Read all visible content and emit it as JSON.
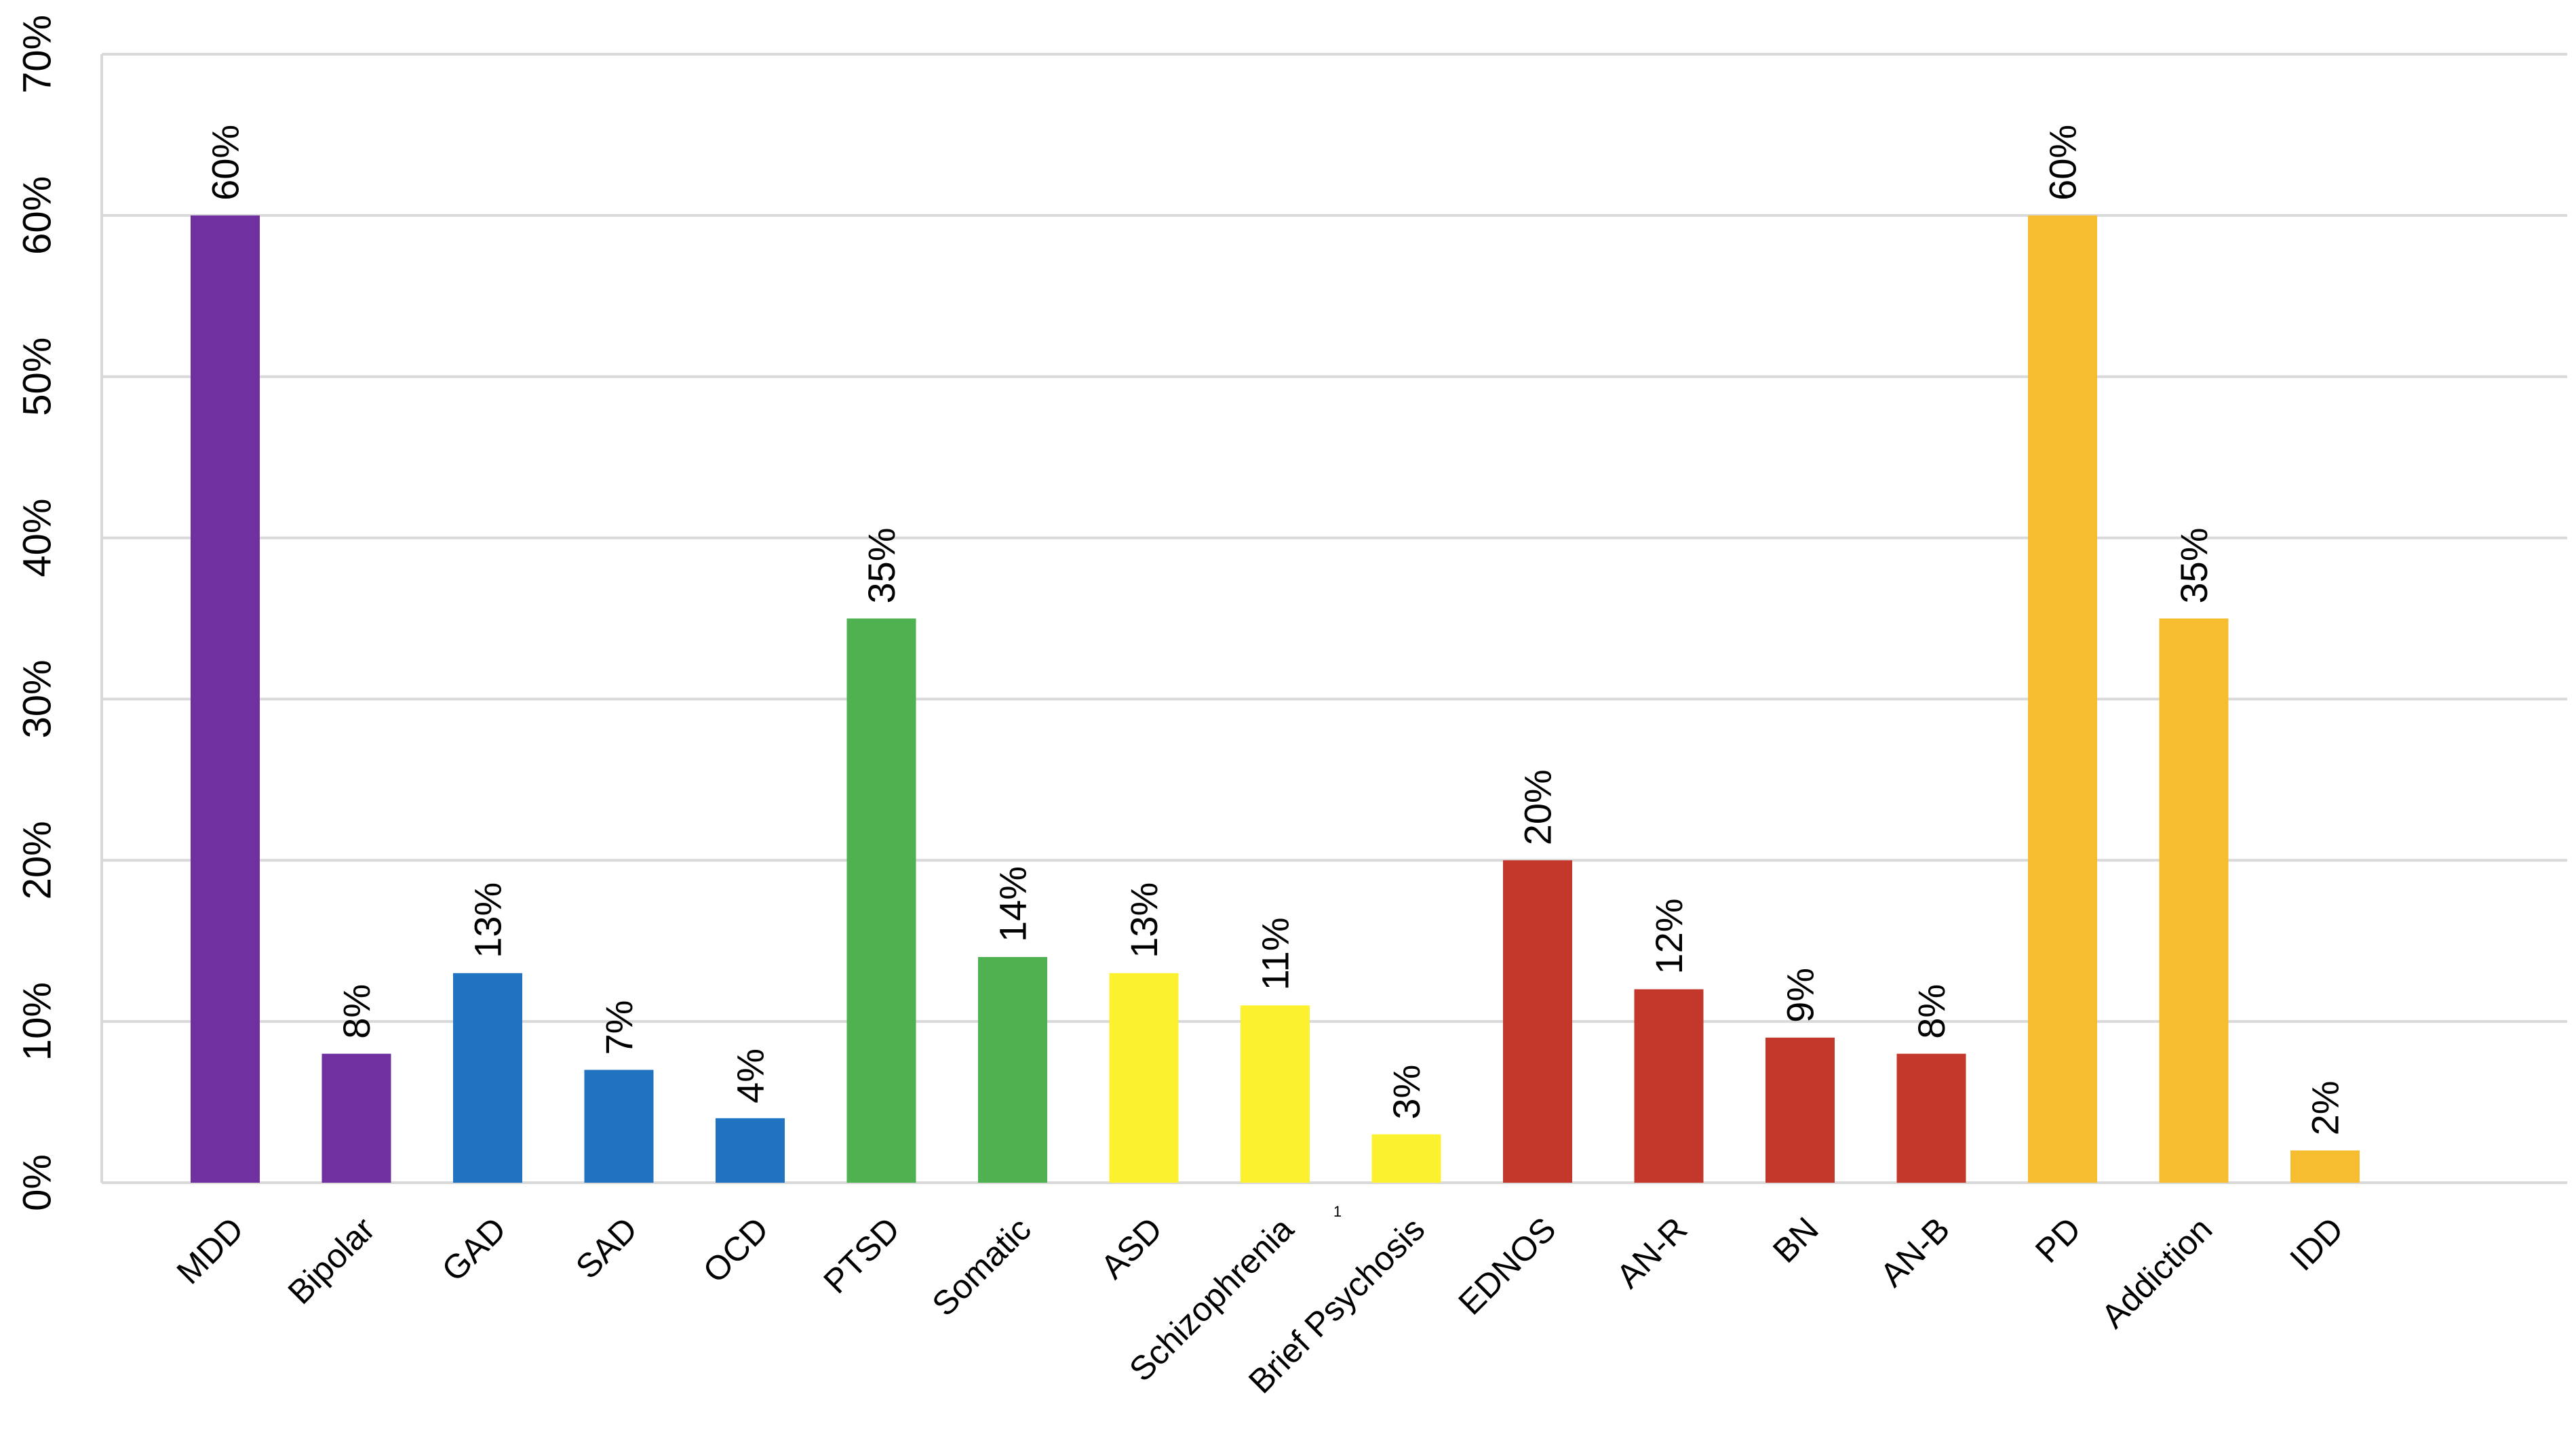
{
  "chart_data": {
    "type": "bar",
    "title": "",
    "xlabel": "",
    "ylabel": "",
    "ylim": [
      0,
      0.7
    ],
    "yticks": [
      "0%",
      "10%",
      "20%",
      "30%",
      "40%",
      "50%",
      "60%",
      "70%"
    ],
    "grid": true,
    "legend": "none",
    "note": "1",
    "categories": [
      "MDD",
      "Bipolar",
      "GAD",
      "SAD",
      "OCD",
      "PTSD",
      "Somatic",
      "ASD",
      "Schizophrenia",
      "Brief Psychosis",
      "EDNOS",
      "AN-R",
      "BN",
      "AN-B",
      "PD",
      "Addiction",
      "IDD"
    ],
    "values": [
      0.6,
      0.08,
      0.13,
      0.07,
      0.04,
      0.35,
      0.14,
      0.13,
      0.11,
      0.03,
      0.2,
      0.12,
      0.09,
      0.08,
      0.6,
      0.35,
      0.02
    ],
    "data_labels": [
      "60%",
      "8%",
      "13%",
      "7%",
      "4%",
      "35%",
      "14%",
      "13%",
      "11%",
      "3%",
      "20%",
      "12%",
      "9%",
      "8%",
      "60%",
      "35%",
      "2%"
    ],
    "colors": [
      "#7030a0",
      "#7030a0",
      "#1f73c0",
      "#1f73c0",
      "#1f73c0",
      "#4fb150",
      "#4fb150",
      "#fcf12f",
      "#fcf12f",
      "#fcf12f",
      "#c3382b",
      "#c3382b",
      "#c3382b",
      "#c3382b",
      "#f6bd30",
      "#f6bd30",
      "#f6bd30"
    ]
  }
}
